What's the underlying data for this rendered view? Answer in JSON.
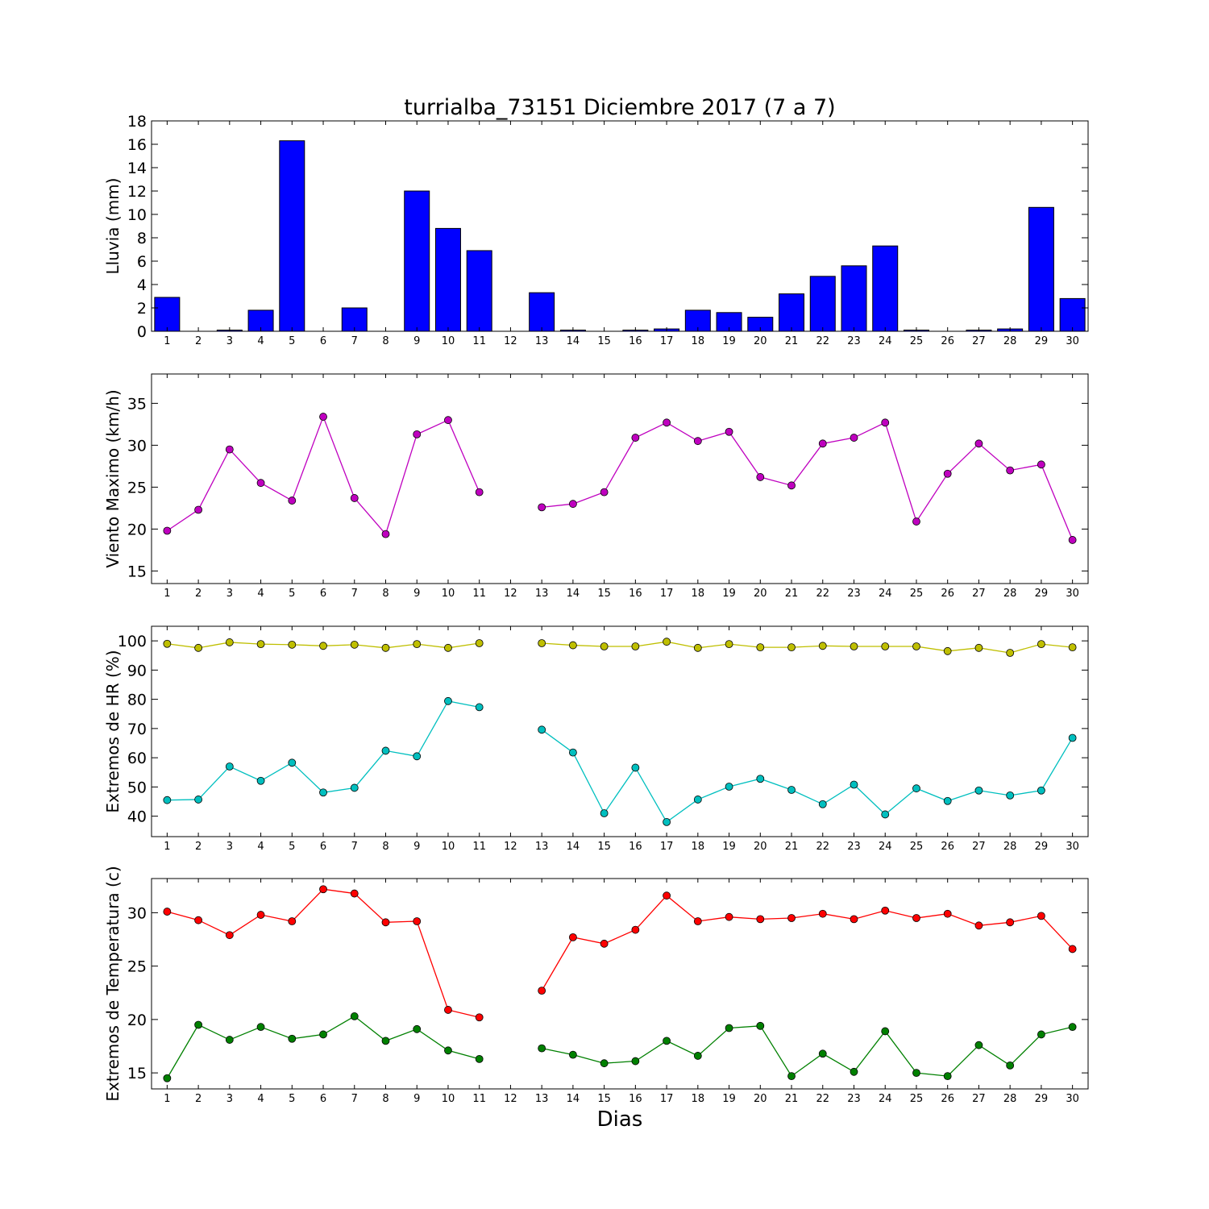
{
  "chart_data": [
    {
      "type": "bar",
      "title": "turrialba_73151 Diciembre 2017  (7 a 7)",
      "ylabel": "Lluvia (mm)",
      "xlabel": "",
      "ylim": [
        0,
        18
      ],
      "yticks": [
        0,
        2,
        4,
        6,
        8,
        10,
        12,
        14,
        16,
        18
      ],
      "categories": [
        "1",
        "2",
        "3",
        "4",
        "5",
        "6",
        "7",
        "8",
        "9",
        "10",
        "11",
        "12",
        "13",
        "14",
        "15",
        "16",
        "17",
        "18",
        "19",
        "20",
        "21",
        "22",
        "23",
        "24",
        "25",
        "26",
        "27",
        "28",
        "29",
        "30"
      ],
      "values": [
        2.9,
        0,
        0.1,
        1.8,
        16.3,
        0,
        2.0,
        0,
        12.0,
        8.8,
        6.9,
        0,
        3.3,
        0.1,
        0,
        0.1,
        0.2,
        1.8,
        1.6,
        1.2,
        3.2,
        4.7,
        5.6,
        7.3,
        0.1,
        0,
        0.1,
        0.2,
        10.6,
        2.8
      ],
      "color": "#0000ff"
    },
    {
      "type": "line",
      "ylabel": "Viento Maximo (km/h)",
      "xlabel": "",
      "ylim": [
        13.5,
        38.5
      ],
      "yticks": [
        15,
        20,
        25,
        30,
        35
      ],
      "categories": [
        "1",
        "2",
        "3",
        "4",
        "5",
        "6",
        "7",
        "8",
        "9",
        "10",
        "11",
        "12",
        "13",
        "14",
        "15",
        "16",
        "17",
        "18",
        "19",
        "20",
        "21",
        "22",
        "23",
        "24",
        "25",
        "26",
        "27",
        "28",
        "29",
        "30"
      ],
      "series": [
        {
          "color": "#bf00bf",
          "values": [
            19.8,
            22.3,
            29.5,
            25.5,
            23.4,
            33.4,
            23.7,
            19.4,
            31.3,
            33.0,
            24.4,
            null,
            22.6,
            23.0,
            24.4,
            30.9,
            32.7,
            30.5,
            31.6,
            26.2,
            25.2,
            30.2,
            30.9,
            32.7,
            20.9,
            26.6,
            30.2,
            27.0,
            27.7,
            18.7
          ]
        }
      ]
    },
    {
      "type": "line",
      "ylabel": "Extremos de HR (%)",
      "xlabel": "",
      "ylim": [
        33,
        105
      ],
      "yticks": [
        40,
        50,
        60,
        70,
        80,
        90,
        100
      ],
      "categories": [
        "1",
        "2",
        "3",
        "4",
        "5",
        "6",
        "7",
        "8",
        "9",
        "10",
        "11",
        "12",
        "13",
        "14",
        "15",
        "16",
        "17",
        "18",
        "19",
        "20",
        "21",
        "22",
        "23",
        "24",
        "25",
        "26",
        "27",
        "28",
        "29",
        "30"
      ],
      "series": [
        {
          "color": "#bfbf00",
          "values": [
            99.0,
            97.6,
            99.5,
            98.9,
            98.7,
            98.3,
            98.7,
            97.6,
            98.9,
            97.6,
            99.2,
            null,
            99.2,
            98.5,
            98.1,
            98.1,
            99.7,
            97.6,
            98.9,
            97.8,
            97.8,
            98.3,
            98.1,
            98.1,
            98.1,
            96.5,
            97.6,
            95.9,
            98.9,
            97.8
          ]
        },
        {
          "color": "#00bfbf",
          "values": [
            45.5,
            45.7,
            57.0,
            52.1,
            58.3,
            48.1,
            49.7,
            62.4,
            60.5,
            79.4,
            77.3,
            null,
            69.6,
            61.8,
            41.0,
            56.6,
            38.0,
            45.7,
            50.1,
            52.8,
            49.0,
            44.1,
            50.8,
            40.6,
            49.5,
            45.2,
            48.8,
            47.1,
            48.8,
            66.8
          ]
        }
      ]
    },
    {
      "type": "line",
      "ylabel": "Extremos de Temperatura (c)",
      "xlabel": "Dias",
      "ylim": [
        13.5,
        33.2
      ],
      "yticks": [
        15,
        20,
        25,
        30
      ],
      "categories": [
        "1",
        "2",
        "3",
        "4",
        "5",
        "6",
        "7",
        "8",
        "9",
        "10",
        "11",
        "12",
        "13",
        "14",
        "15",
        "16",
        "17",
        "18",
        "19",
        "20",
        "21",
        "22",
        "23",
        "24",
        "25",
        "26",
        "27",
        "28",
        "29",
        "30"
      ],
      "series": [
        {
          "color": "#ff0000",
          "values": [
            30.1,
            29.3,
            27.9,
            29.8,
            29.2,
            32.2,
            31.8,
            29.1,
            29.2,
            20.9,
            20.2,
            null,
            22.7,
            27.7,
            27.1,
            28.4,
            31.6,
            29.2,
            29.6,
            29.4,
            29.5,
            29.9,
            29.4,
            30.2,
            29.5,
            29.9,
            28.8,
            29.1,
            29.7,
            26.6
          ]
        },
        {
          "color": "#008000",
          "values": [
            14.5,
            19.5,
            18.1,
            19.3,
            18.2,
            18.6,
            20.3,
            18.0,
            19.1,
            17.1,
            16.3,
            null,
            17.3,
            16.7,
            15.9,
            16.1,
            18.0,
            16.6,
            19.2,
            19.4,
            14.7,
            16.8,
            15.1,
            18.9,
            15.0,
            14.7,
            17.6,
            15.7,
            18.6,
            19.3
          ]
        }
      ]
    }
  ]
}
